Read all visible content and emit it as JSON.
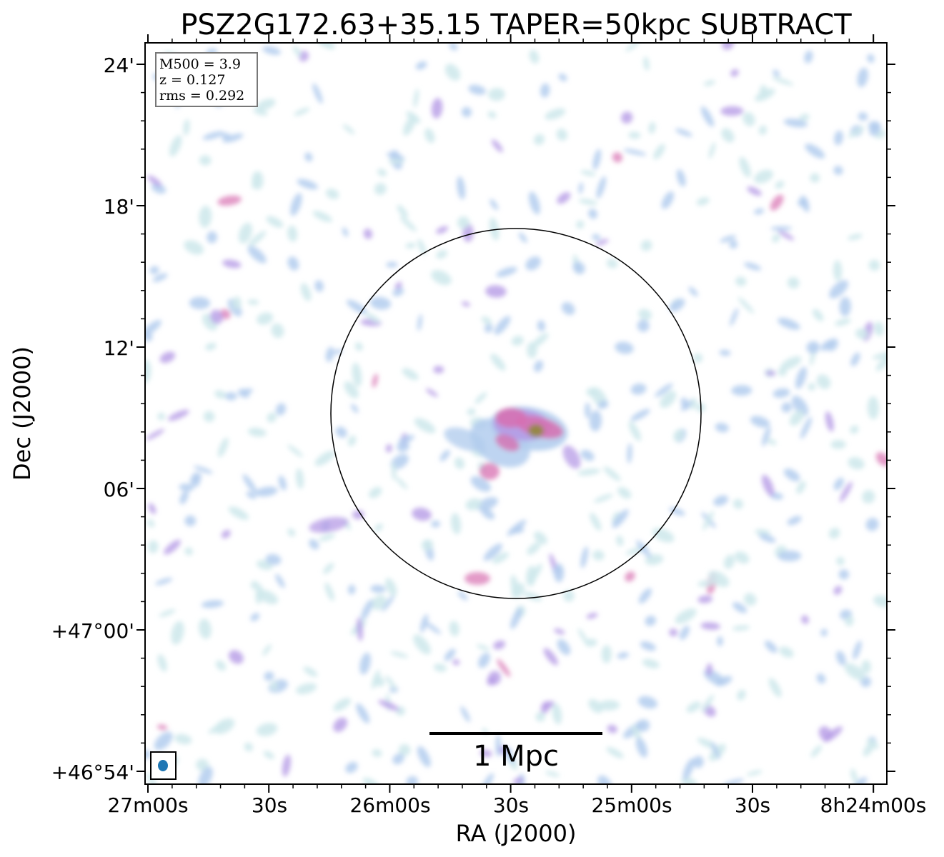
{
  "chart_data": {
    "type": "heatmap",
    "title": "PSZ2G172.63+35.15 TAPER=50kpc SUBTRACT",
    "xlabel": "RA (J2000)",
    "ylabel": "Dec (J2000)",
    "x_ticks": [
      "27m00s",
      "30s",
      "26m00s",
      "30s",
      "25m00s",
      "30s",
      "8h24m00s"
    ],
    "y_ticks": [
      "24'",
      "18'",
      "12'",
      "06'",
      "+47°00'",
      "+46°54'"
    ],
    "info_box": [
      "M500 = 3.9",
      "z = 0.127",
      "rms = 0.292"
    ],
    "scale_bar_label": "1 Mpc",
    "colormap": [
      "#cfe9ec",
      "#b3cdee",
      "#b59be6",
      "#d76fb0",
      "#8f8a3a"
    ],
    "beam_color": "#1f77b4"
  }
}
